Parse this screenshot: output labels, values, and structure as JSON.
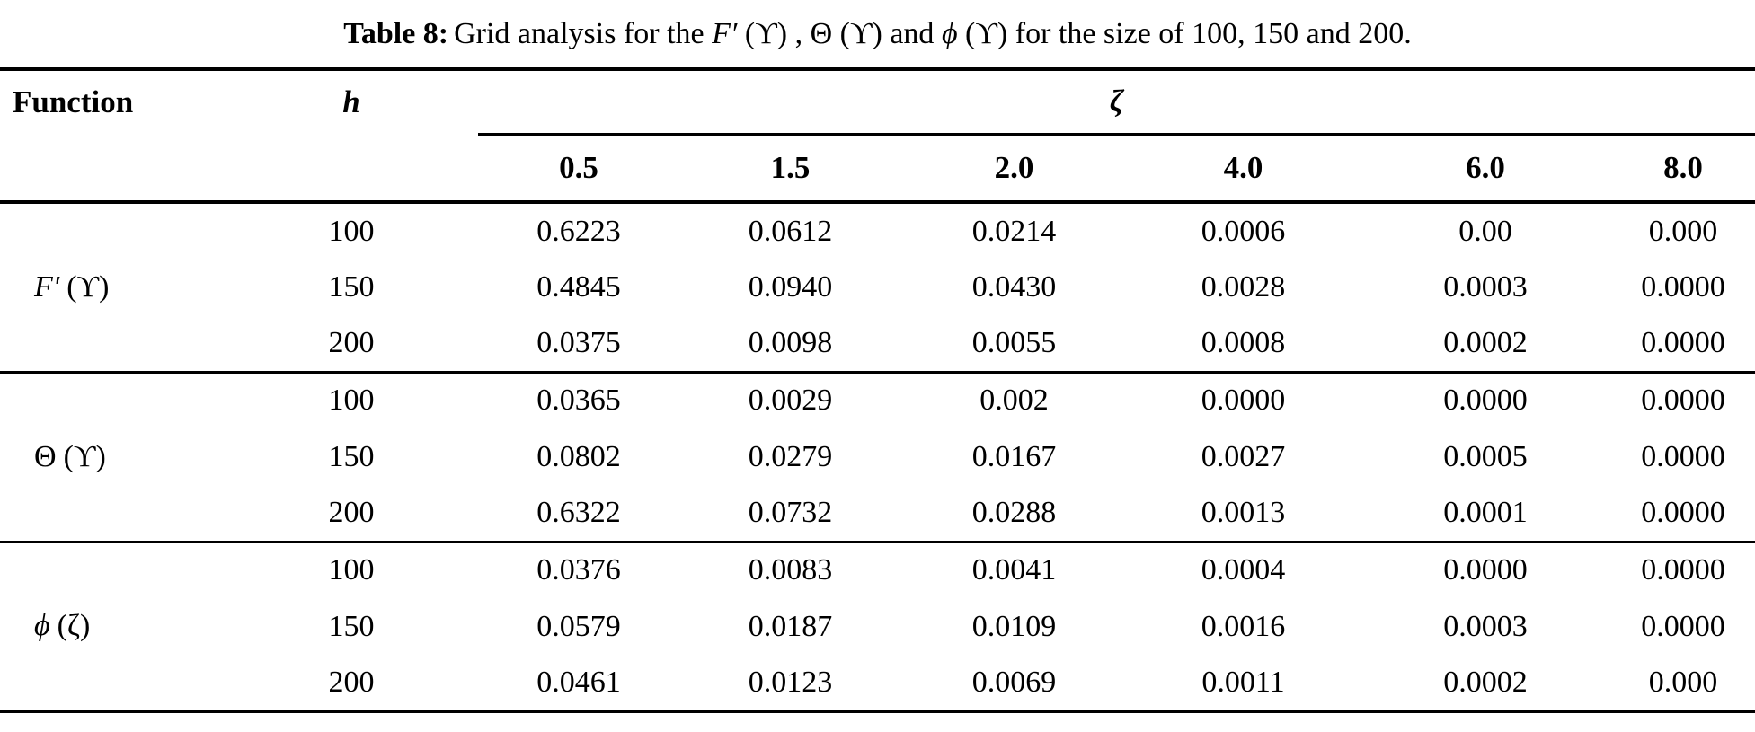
{
  "caption": {
    "parts": [
      {
        "text": "Table 8:",
        "style": "bold"
      },
      {
        "text": "Grid analysis for the ",
        "style": "normal"
      },
      {
        "text": "F′",
        "style": "italic"
      },
      {
        "text": " (ϒ) , ",
        "style": "normal"
      },
      {
        "text": "Θ (ϒ)",
        "style": "normal"
      },
      {
        "text": " and ",
        "style": "normal"
      },
      {
        "text": "ϕ",
        "style": "italic"
      },
      {
        "text": " (ϒ) ",
        "style": "normal"
      },
      {
        "text": "for the size of 100, 150 and 200.",
        "style": "normal"
      }
    ]
  },
  "table": {
    "col_function": "Function",
    "col_h": "h",
    "col_zeta": "ζ",
    "zeta_values": [
      "0.5",
      "1.5",
      "2.0",
      "4.0",
      "6.0",
      "8.0"
    ],
    "groups": [
      {
        "label_sym": "F′",
        "label_sym_style": "italic",
        "label_arg": "(ϒ)",
        "rows": [
          {
            "h": "100",
            "values": [
              "0.6223",
              "0.0612",
              "0.0214",
              "0.0006",
              "0.00",
              "0.000"
            ]
          },
          {
            "h": "150",
            "values": [
              "0.4845",
              "0.0940",
              "0.0430",
              "0.0028",
              "0.0003",
              "0.0000"
            ]
          },
          {
            "h": "200",
            "values": [
              "0.0375",
              "0.0098",
              "0.0055",
              "0.0008",
              "0.0002",
              "0.0000"
            ]
          }
        ]
      },
      {
        "label_sym": "Θ",
        "label_sym_style": "normal",
        "label_arg": "(ϒ)",
        "rows": [
          {
            "h": "100",
            "values": [
              "0.0365",
              "0.0029",
              "0.002",
              "0.0000",
              "0.0000",
              "0.0000"
            ]
          },
          {
            "h": "150",
            "values": [
              "0.0802",
              "0.0279",
              "0.0167",
              "0.0027",
              "0.0005",
              "0.0000"
            ]
          },
          {
            "h": "200",
            "values": [
              "0.6322",
              "0.0732",
              "0.0288",
              "0.0013",
              "0.0001",
              "0.0000"
            ]
          }
        ]
      },
      {
        "label_sym": "ϕ",
        "label_sym_style": "italic",
        "label_arg": "(ζ)",
        "rows": [
          {
            "h": "100",
            "values": [
              "0.0376",
              "0.0083",
              "0.0041",
              "0.0004",
              "0.0000",
              "0.0000"
            ]
          },
          {
            "h": "150",
            "values": [
              "0.0579",
              "0.0187",
              "0.0109",
              "0.0016",
              "0.0003",
              "0.0000"
            ]
          },
          {
            "h": "200",
            "values": [
              "0.0461",
              "0.0123",
              "0.0069",
              "0.0011",
              "0.0002",
              "0.000"
            ]
          }
        ]
      }
    ]
  },
  "colors": {
    "text": "#000000",
    "background": "#ffffff",
    "rule": "#000000"
  }
}
